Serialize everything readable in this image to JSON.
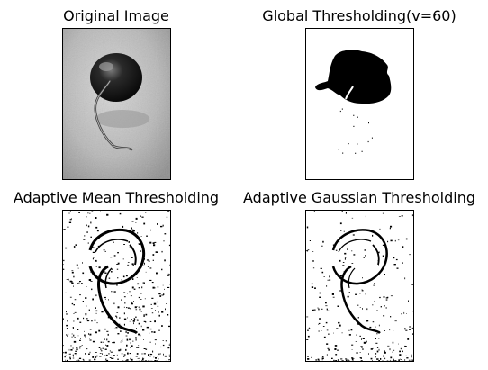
{
  "figure": {
    "panels": [
      {
        "title": "Original Image",
        "rendering": "grayscale"
      },
      {
        "title": "Global Thresholding(v=60)",
        "rendering": "binary-global"
      },
      {
        "title": "Adaptive Mean Thresholding",
        "rendering": "binary-adaptive-mean"
      },
      {
        "title": "Adaptive Gaussian Thresholding",
        "rendering": "binary-adaptive-gaussian"
      }
    ]
  },
  "colors": {
    "background": "#ffffff",
    "frame": "#000000",
    "ink": "#000000",
    "paper": "#ffffff",
    "photo_light": "#c8c8c8",
    "photo_mid": "#8a8a8a",
    "photo_dark": "#1a1a1a"
  }
}
